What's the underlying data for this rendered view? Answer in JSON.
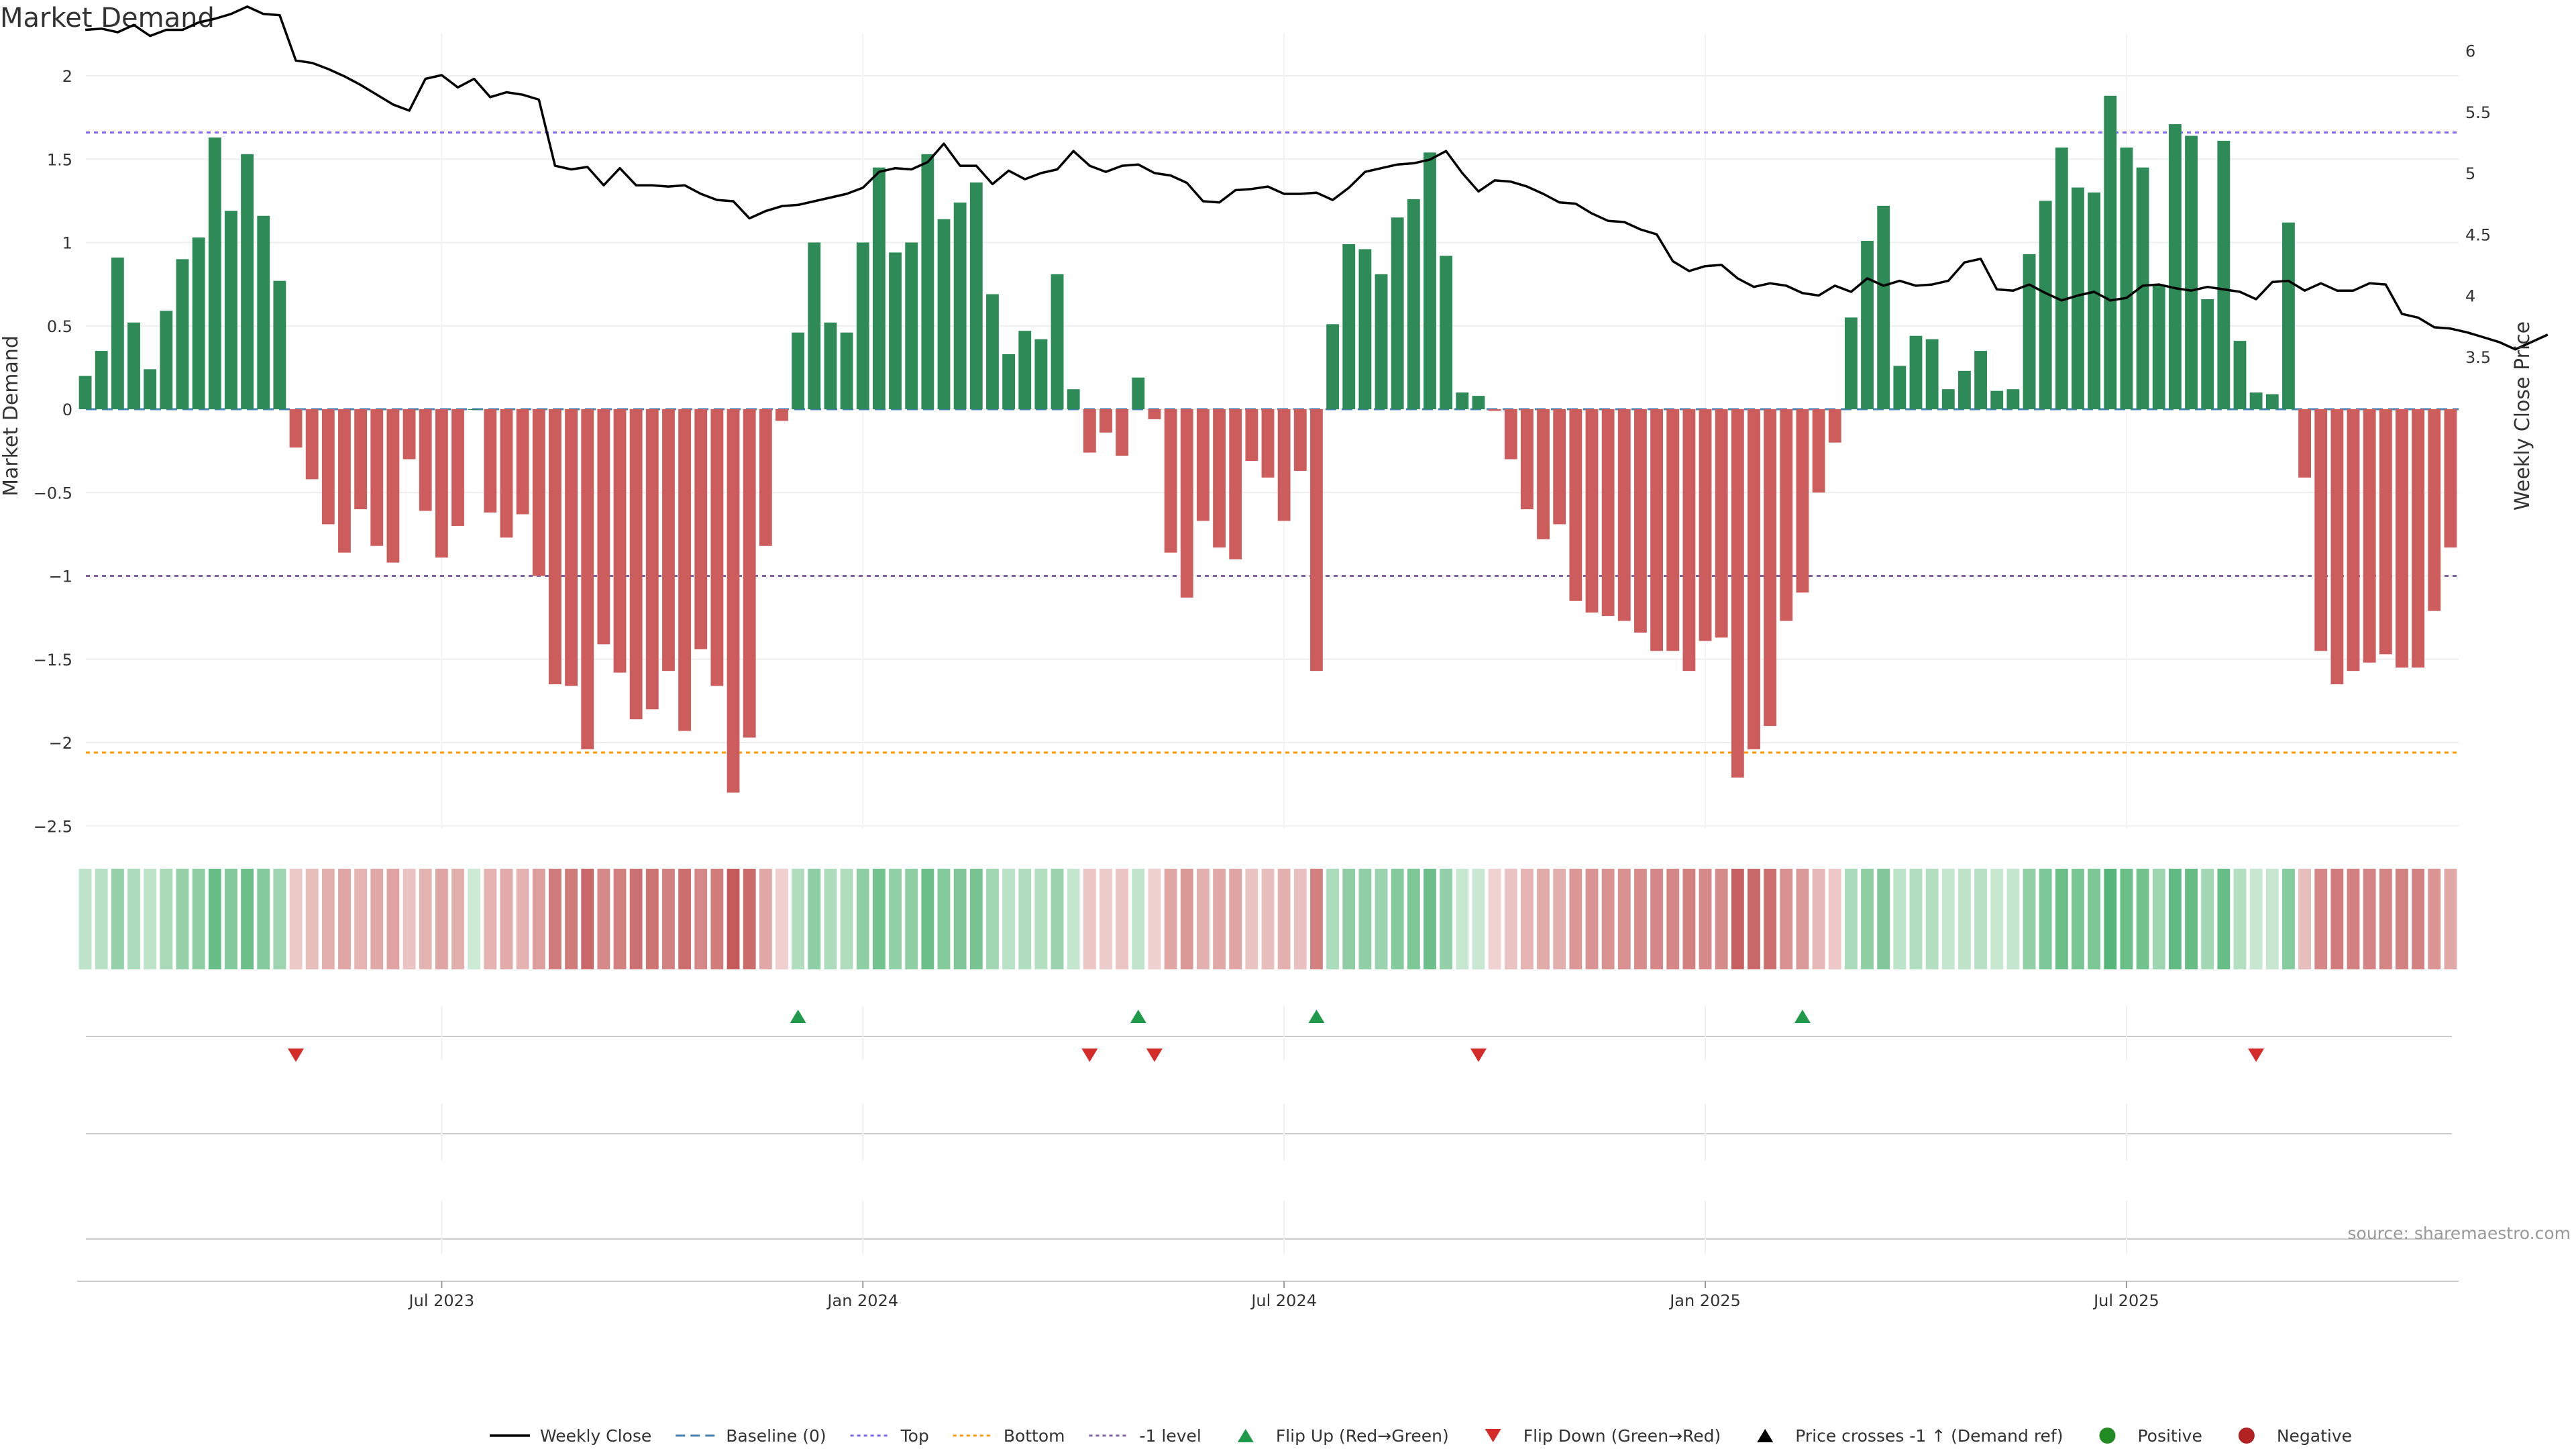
{
  "chart_data": {
    "type": "bar",
    "title": "Market Demand",
    "ylabel": "Market Demand",
    "y2label": "Weekly Close Price",
    "source": "source: sharemaestro.com",
    "ylim": [
      -2.5,
      2
    ],
    "y2lim": [
      3.5,
      6
    ],
    "yticks": [
      {
        "v": 2,
        "label": "2"
      },
      {
        "v": 1.5,
        "label": "1.5"
      },
      {
        "v": 1,
        "label": "1"
      },
      {
        "v": 0.5,
        "label": "0.5"
      },
      {
        "v": 0,
        "label": "0"
      },
      {
        "v": -0.5,
        "label": "−0.5"
      },
      {
        "v": -1,
        "label": "−1"
      },
      {
        "v": -1.5,
        "label": "−1.5"
      },
      {
        "v": -2,
        "label": "−2"
      },
      {
        "v": -2.5,
        "label": "−2.5"
      }
    ],
    "y2ticks": [
      {
        "v": 6,
        "label": "6"
      },
      {
        "v": 5.5,
        "label": "5.5"
      },
      {
        "v": 5,
        "label": "5"
      },
      {
        "v": 4.5,
        "label": "4.5"
      },
      {
        "v": 4,
        "label": "4"
      },
      {
        "v": 3.5,
        "label": "3.5"
      }
    ],
    "xticks": [
      {
        "index": 22,
        "label": "Jul 2023"
      },
      {
        "index": 48,
        "label": "Jan 2024"
      },
      {
        "index": 74,
        "label": "Jul 2024"
      },
      {
        "index": 100,
        "label": "Jan 2025"
      },
      {
        "index": 126,
        "label": "Jul 2025"
      }
    ],
    "levels": {
      "top": 1.66,
      "bottom": -2.06,
      "minus_one": -1,
      "baseline": 0
    },
    "colors": {
      "positive": "#2e8b57",
      "negative": "#cd5c5c",
      "price": "#000000",
      "baseline": "#4682b4",
      "top": "#7b68ee",
      "bottom": "#ff9900",
      "minus_one": "#8064a2",
      "flip_up": "#1f9a4a",
      "flip_down": "#d42b2b"
    },
    "demand": [
      0.2,
      0.35,
      0.91,
      0.52,
      0.24,
      0.59,
      0.9,
      1.03,
      1.63,
      1.19,
      1.53,
      1.16,
      0.77,
      -0.23,
      -0.42,
      -0.69,
      -0.86,
      -0.6,
      -0.82,
      -0.92,
      -0.3,
      -0.61,
      -0.89,
      -0.7,
      0.0,
      -0.62,
      -0.77,
      -0.63,
      -1.0,
      -1.65,
      -1.66,
      -2.04,
      -1.41,
      -1.58,
      -1.86,
      -1.8,
      -1.57,
      -1.93,
      -1.44,
      -1.66,
      -2.3,
      -1.97,
      -0.82,
      -0.07,
      0.46,
      1.0,
      0.52,
      0.46,
      1.0,
      1.45,
      0.94,
      1.0,
      1.53,
      1.14,
      1.24,
      1.36,
      0.69,
      0.33,
      0.47,
      0.42,
      0.81,
      0.12,
      -0.26,
      -0.14,
      -0.28,
      0.19,
      -0.06,
      -0.86,
      -1.13,
      -0.67,
      -0.83,
      -0.9,
      -0.31,
      -0.41,
      -0.67,
      -0.37,
      -1.57,
      0.51,
      0.99,
      0.96,
      0.81,
      1.15,
      1.26,
      1.54,
      0.92,
      0.1,
      0.08,
      -0.01,
      -0.3,
      -0.6,
      -0.78,
      -0.69,
      -1.15,
      -1.22,
      -1.24,
      -1.27,
      -1.34,
      -1.45,
      -1.45,
      -1.57,
      -1.39,
      -1.37,
      -2.21,
      -2.04,
      -1.9,
      -1.27,
      -1.1,
      -0.5,
      -0.2,
      0.55,
      1.01,
      1.22,
      0.26,
      0.44,
      0.42,
      0.12,
      0.23,
      0.35,
      0.11,
      0.12,
      0.93,
      1.25,
      1.57,
      1.33,
      1.3,
      1.88,
      1.57,
      1.45,
      0.74,
      1.71,
      1.64,
      0.66,
      1.61,
      0.41,
      0.1,
      0.09,
      1.12,
      -0.41,
      -1.45,
      -1.65,
      -1.57,
      -1.52,
      -1.47,
      -1.55,
      -1.55,
      -1.21,
      -0.83
    ],
    "price": [
      6.17,
      6.18,
      6.15,
      6.21,
      6.12,
      6.17,
      6.17,
      6.23,
      6.26,
      6.3,
      6.36,
      6.3,
      6.29,
      5.92,
      5.9,
      5.85,
      5.79,
      5.72,
      5.64,
      5.56,
      5.51,
      5.77,
      5.8,
      5.7,
      5.77,
      5.62,
      5.66,
      5.64,
      5.6,
      5.06,
      5.03,
      5.05,
      4.9,
      5.04,
      4.9,
      4.9,
      4.89,
      4.9,
      4.83,
      4.78,
      4.77,
      4.63,
      4.69,
      4.73,
      4.74,
      4.77,
      4.8,
      4.83,
      4.88,
      5.01,
      5.04,
      5.03,
      5.09,
      5.24,
      5.06,
      5.06,
      4.91,
      5.02,
      4.95,
      5.0,
      5.03,
      5.18,
      5.06,
      5.01,
      5.06,
      5.07,
      5.0,
      4.98,
      4.92,
      4.77,
      4.76,
      4.86,
      4.87,
      4.89,
      4.83,
      4.83,
      4.84,
      4.78,
      4.88,
      5.01,
      5.04,
      5.07,
      5.08,
      5.11,
      5.18,
      5.0,
      4.85,
      4.94,
      4.93,
      4.89,
      4.83,
      4.76,
      4.75,
      4.67,
      4.61,
      4.6,
      4.54,
      4.5,
      4.28,
      4.2,
      4.24,
      4.25,
      4.14,
      4.07,
      4.1,
      4.08,
      4.02,
      4.0,
      4.08,
      4.03,
      4.14,
      4.08,
      4.12,
      4.08,
      4.09,
      4.12,
      4.27,
      4.3,
      4.05,
      4.04,
      4.09,
      4.02,
      3.96,
      4.0,
      4.03,
      3.96,
      3.98,
      4.08,
      4.09,
      4.06,
      4.04,
      4.07,
      4.05,
      4.03,
      3.97,
      4.11,
      4.12,
      4.04,
      4.1,
      4.04,
      4.04,
      4.1,
      4.09,
      3.85,
      3.82,
      3.74,
      3.73,
      3.7,
      3.66,
      3.62,
      3.56,
      3.62,
      3.68
    ],
    "heat_strip": "colour intensity follows the demand value for each week",
    "flip_up_weeks": [
      44,
      65,
      76,
      106
    ],
    "flip_down_weeks": [
      13,
      62,
      66,
      86,
      134
    ],
    "legend": [
      {
        "label": "Weekly Close",
        "kind": "line",
        "color": "#000000"
      },
      {
        "label": "Baseline (0)",
        "kind": "dash",
        "color": "#4682b4"
      },
      {
        "label": "Top",
        "kind": "dot",
        "color": "#7b68ee"
      },
      {
        "label": "Bottom",
        "kind": "dot",
        "color": "#ff9900"
      },
      {
        "label": "-1 level",
        "kind": "dot",
        "color": "#8064a2"
      },
      {
        "label": "Flip Up (Red→Green)",
        "kind": "tri-up",
        "color": "#1f9a4a"
      },
      {
        "label": "Flip Down (Green→Red)",
        "kind": "tri-down",
        "color": "#d42b2b"
      },
      {
        "label": "Price crosses -1 ↑ (Demand ref)",
        "kind": "tri-up",
        "color": "#000000"
      },
      {
        "label": "Positive",
        "kind": "circle",
        "color": "#228b22"
      },
      {
        "label": "Negative",
        "kind": "circle",
        "color": "#b22222"
      }
    ]
  }
}
